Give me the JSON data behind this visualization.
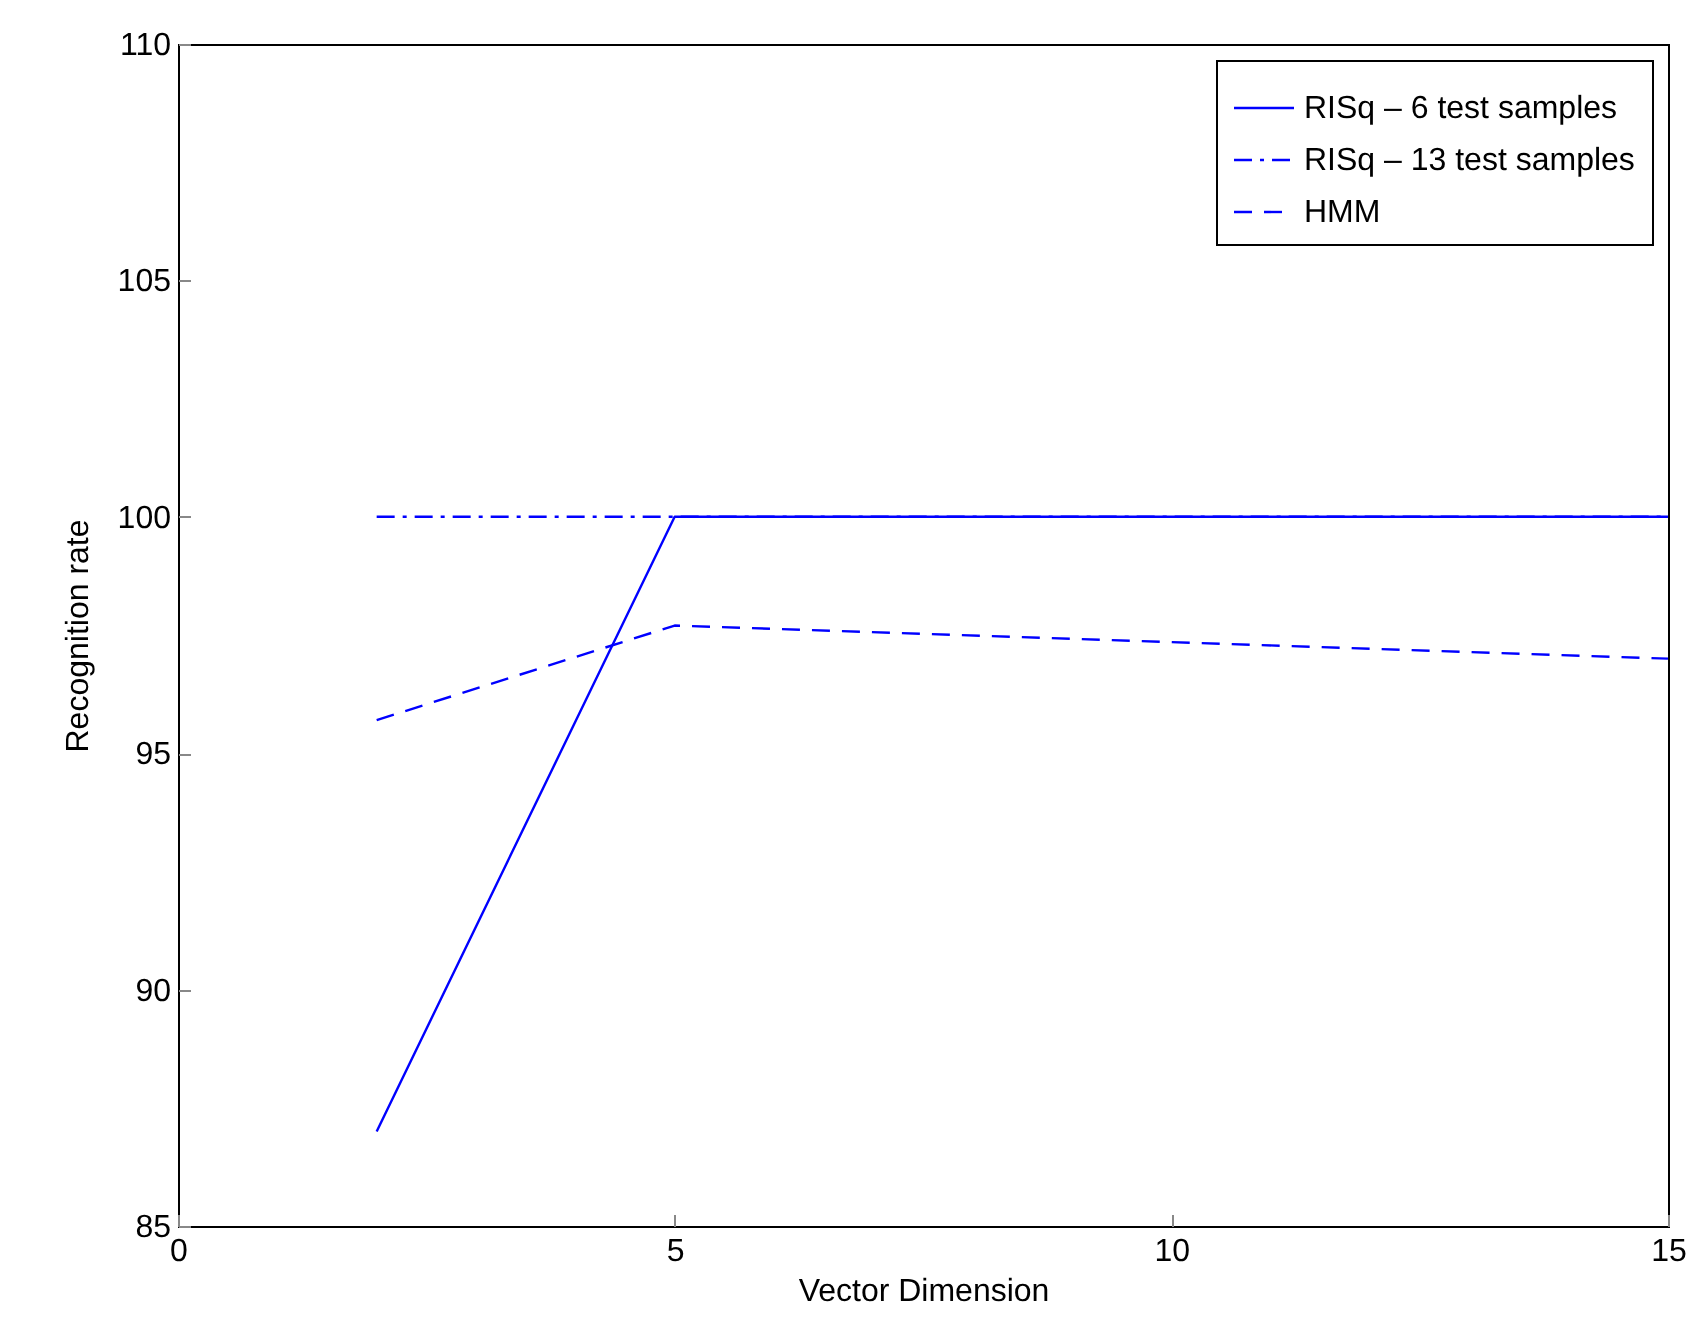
{
  "chart_data": {
    "type": "line",
    "xlabel": "Vector Dimension",
    "ylabel": "Recognition rate",
    "x": [
      2,
      5,
      15
    ],
    "series": [
      {
        "name": "RISq – 6 test samples",
        "color": "#0000ff",
        "line_style": "solid",
        "values": [
          87,
          100,
          100
        ]
      },
      {
        "name": "RISq – 13 test samples",
        "color": "#0000ff",
        "line_style": "dashdot",
        "values": [
          100,
          100,
          100
        ]
      },
      {
        "name": "HMM",
        "color": "#0000ff",
        "line_style": "dashed",
        "values": [
          95.7,
          97.7,
          97.0
        ]
      }
    ],
    "xlim": [
      0,
      15
    ],
    "xticks": [
      0,
      5,
      10,
      15
    ],
    "ylim": [
      85,
      110
    ],
    "yticks": [
      85,
      90,
      95,
      100,
      105,
      110
    ],
    "grid": false,
    "legend": "top right",
    "marker": "none"
  }
}
